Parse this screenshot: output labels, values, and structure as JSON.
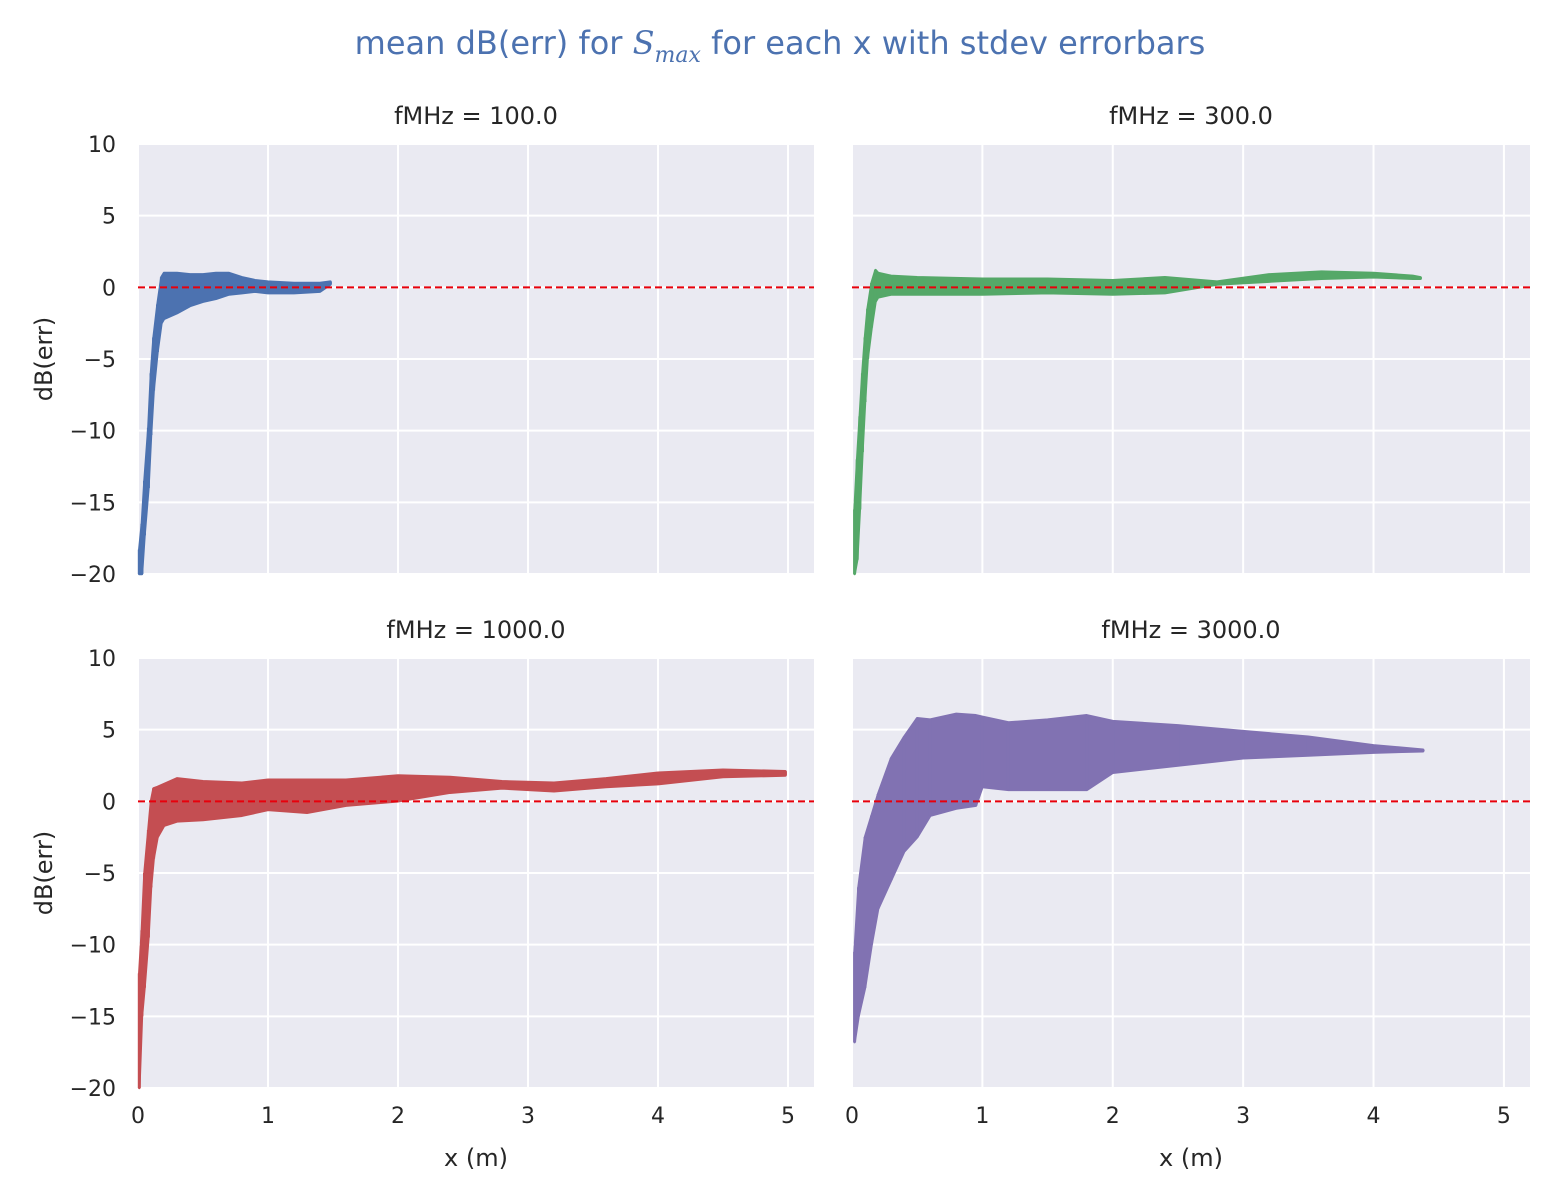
{
  "figure": {
    "title_prefix": "mean dB(err) for ",
    "title_math_base": "S",
    "title_math_sub": "max",
    "title_suffix": " for each x with stdev errorbars"
  },
  "colors": {
    "plot_background": "#eaeaf2",
    "grid": "#ffffff",
    "reference_line": "#e8000b",
    "title": "#4c72b0",
    "text": "#262626"
  },
  "chart_data": [
    {
      "type": "area",
      "title": "fMHz = 100.0",
      "xlabel": "",
      "ylabel": "dB(err)",
      "xlim": [
        0,
        5.2
      ],
      "ylim": [
        -20,
        10
      ],
      "xticks": [
        0,
        1,
        2,
        3,
        4,
        5
      ],
      "yticks": [
        10,
        5,
        0,
        -5,
        -10,
        -15,
        -20
      ],
      "grid": true,
      "reference_line_y": 0,
      "series": [
        {
          "color": "#4c72b0",
          "x": [
            0.01,
            0.03,
            0.05,
            0.08,
            0.1,
            0.12,
            0.15,
            0.18,
            0.2,
            0.3,
            0.4,
            0.5,
            0.6,
            0.7,
            0.8,
            0.9,
            1.0,
            1.2,
            1.4,
            1.48
          ],
          "upper": [
            -18.3,
            -16.5,
            -13.5,
            -9.8,
            -6.0,
            -3.5,
            -1.2,
            0.7,
            1.0,
            1.0,
            0.9,
            0.9,
            1.0,
            1.0,
            0.7,
            0.5,
            0.4,
            0.3,
            0.3,
            0.4
          ],
          "lower": [
            -20.0,
            -20.0,
            -17.3,
            -14.0,
            -10.3,
            -7.2,
            -4.5,
            -2.5,
            -2.2,
            -1.8,
            -1.3,
            -1.0,
            -0.8,
            -0.5,
            -0.4,
            -0.3,
            -0.4,
            -0.4,
            -0.3,
            0.2
          ]
        }
      ]
    },
    {
      "type": "area",
      "title": "fMHz = 300.0",
      "xlabel": "",
      "ylabel": "",
      "xlim": [
        0,
        5.2
      ],
      "ylim": [
        -20,
        10
      ],
      "xticks": [
        0,
        1,
        2,
        3,
        4,
        5
      ],
      "yticks": [
        10,
        5,
        0,
        -5,
        -10,
        -15,
        -20
      ],
      "grid": true,
      "reference_line_y": 0,
      "series": [
        {
          "color": "#55a868",
          "x": [
            0.02,
            0.04,
            0.06,
            0.08,
            0.1,
            0.12,
            0.15,
            0.18,
            0.2,
            0.3,
            0.5,
            1.0,
            1.5,
            2.0,
            2.4,
            2.8,
            3.2,
            3.6,
            4.0,
            4.3,
            4.36
          ],
          "upper": [
            -15.5,
            -12.0,
            -9.0,
            -6.0,
            -3.5,
            -1.5,
            0.3,
            1.2,
            1.0,
            0.8,
            0.7,
            0.6,
            0.6,
            0.5,
            0.7,
            0.4,
            0.9,
            1.1,
            1.0,
            0.8,
            0.7
          ],
          "lower": [
            -20.0,
            -19.0,
            -15.5,
            -11.5,
            -8.0,
            -5.0,
            -2.8,
            -1.0,
            -0.7,
            -0.5,
            -0.5,
            -0.5,
            -0.4,
            -0.5,
            -0.4,
            0.2,
            0.4,
            0.6,
            0.7,
            0.6,
            0.6
          ]
        }
      ]
    },
    {
      "type": "area",
      "title": "fMHz = 1000.0",
      "xlabel": "x (m)",
      "ylabel": "dB(err)",
      "xlim": [
        0,
        5.2
      ],
      "ylim": [
        -20,
        10
      ],
      "xticks": [
        0,
        1,
        2,
        3,
        4,
        5
      ],
      "yticks": [
        10,
        5,
        0,
        -5,
        -10,
        -15,
        -20
      ],
      "grid": true,
      "reference_line_y": 0,
      "series": [
        {
          "color": "#c44e52",
          "x": [
            0.01,
            0.03,
            0.05,
            0.08,
            0.1,
            0.12,
            0.15,
            0.2,
            0.3,
            0.5,
            0.8,
            1.0,
            1.3,
            1.6,
            2.0,
            2.4,
            2.8,
            3.2,
            3.6,
            4.0,
            4.5,
            4.98
          ],
          "upper": [
            -12.0,
            -9.0,
            -5.0,
            -2.0,
            0.0,
            0.9,
            1.0,
            1.2,
            1.6,
            1.4,
            1.3,
            1.5,
            1.5,
            1.5,
            1.8,
            1.7,
            1.4,
            1.3,
            1.6,
            2.0,
            2.2,
            2.1
          ],
          "lower": [
            -20.0,
            -15.0,
            -13.0,
            -9.5,
            -6.0,
            -4.0,
            -2.5,
            -1.7,
            -1.4,
            -1.3,
            -1.0,
            -0.6,
            -0.8,
            -0.3,
            0.0,
            0.6,
            0.9,
            0.7,
            1.0,
            1.2,
            1.7,
            1.8
          ]
        }
      ]
    },
    {
      "type": "area",
      "title": "fMHz = 3000.0",
      "xlabel": "x (m)",
      "ylabel": "",
      "xlim": [
        0,
        5.2
      ],
      "ylim": [
        -20,
        10
      ],
      "xticks": [
        0,
        1,
        2,
        3,
        4,
        5
      ],
      "yticks": [
        10,
        5,
        0,
        -5,
        -10,
        -15,
        -20
      ],
      "grid": true,
      "reference_line_y": 0,
      "series": [
        {
          "color": "#8172b2",
          "x": [
            0.02,
            0.05,
            0.1,
            0.15,
            0.2,
            0.3,
            0.4,
            0.5,
            0.6,
            0.8,
            0.95,
            1.0,
            1.2,
            1.5,
            1.8,
            2.0,
            2.5,
            3.0,
            3.5,
            4.0,
            4.38
          ],
          "upper": [
            -10.5,
            -6.0,
            -2.5,
            -1.0,
            0.5,
            3.0,
            4.5,
            5.8,
            5.7,
            6.1,
            6.0,
            5.9,
            5.5,
            5.7,
            6.0,
            5.6,
            5.3,
            4.9,
            4.5,
            3.9,
            3.6
          ],
          "lower": [
            -16.8,
            -15.0,
            -13.0,
            -10.0,
            -7.5,
            -5.5,
            -3.5,
            -2.5,
            -1.0,
            -0.5,
            -0.3,
            1.0,
            0.8,
            0.8,
            0.8,
            2.0,
            2.5,
            3.0,
            3.2,
            3.4,
            3.5
          ]
        }
      ]
    }
  ]
}
